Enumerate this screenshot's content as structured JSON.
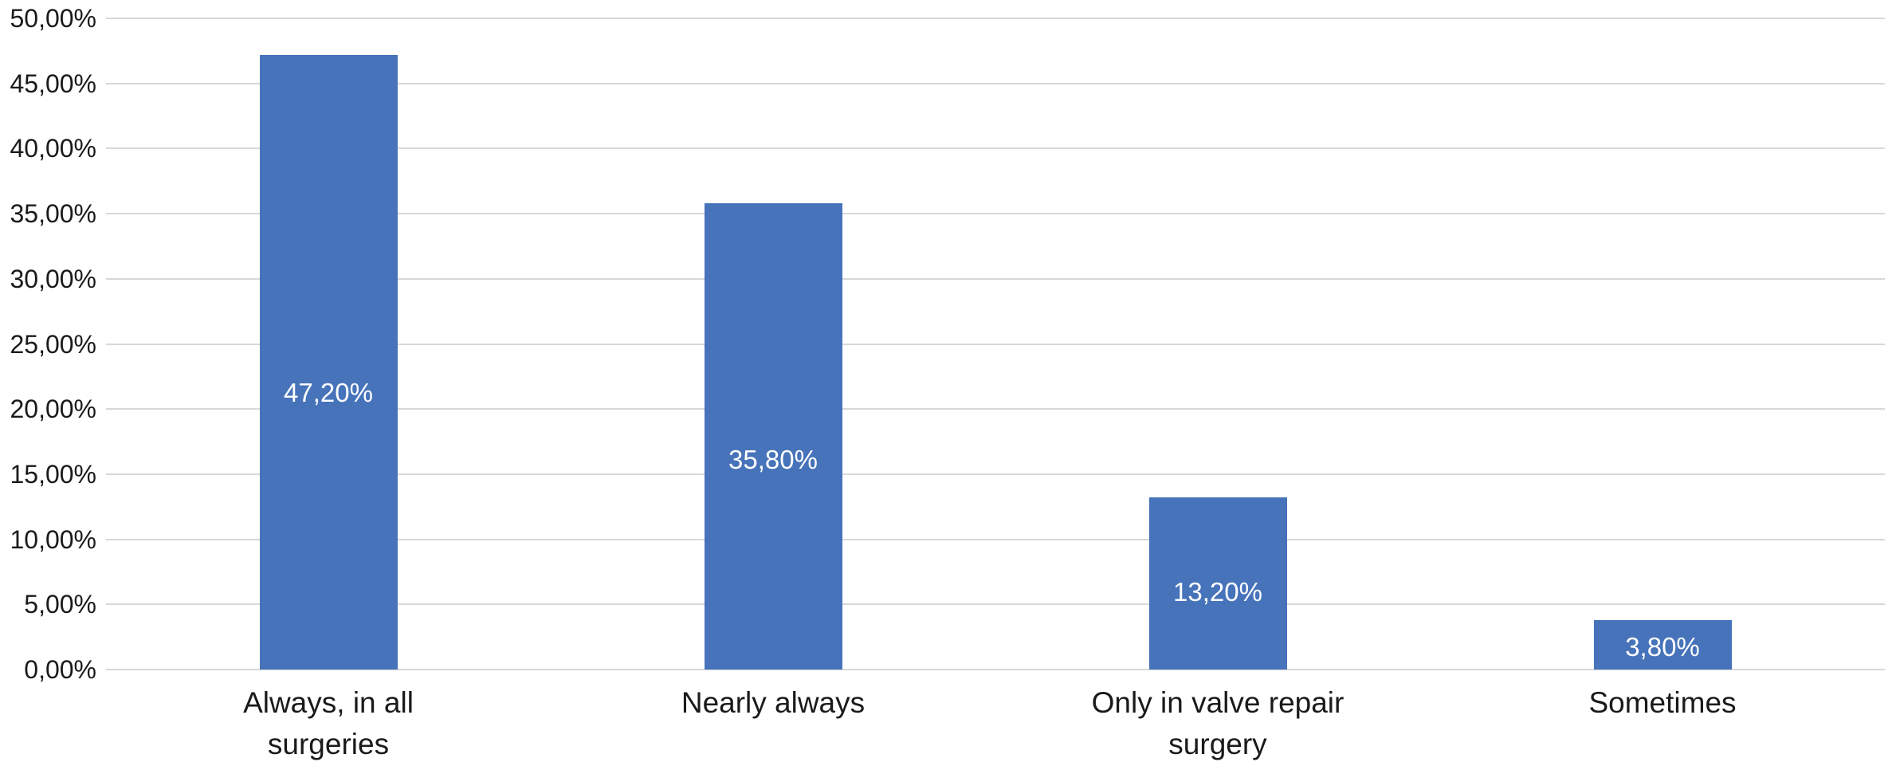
{
  "chart_data": {
    "type": "bar",
    "title": "",
    "xlabel": "",
    "ylabel": "",
    "categories": [
      "Always, in all\nsurgeries",
      "Nearly always",
      "Only in valve repair\nsurgery",
      "Sometimes"
    ],
    "values": [
      47.2,
      35.8,
      13.2,
      3.8
    ],
    "data_labels": [
      "47,20%",
      "35,80%",
      "13,20%",
      "3,80%"
    ],
    "y_tick_labels": [
      "0,00%",
      "5,00%",
      "10,00%",
      "15,00%",
      "20,00%",
      "25,00%",
      "30,00%",
      "35,00%",
      "40,00%",
      "45,00%",
      "50,00%"
    ],
    "y_tick_values": [
      0,
      5,
      10,
      15,
      20,
      25,
      30,
      35,
      40,
      45,
      50
    ],
    "ylim": [
      0,
      50
    ],
    "grid": true,
    "legend": false,
    "colors": {
      "bar": "#4673ba",
      "data_label_text": "#ffffff",
      "gridline": "#d8d8d8",
      "axis_text": "#1a1a1a",
      "background": "#ffffff"
    }
  }
}
